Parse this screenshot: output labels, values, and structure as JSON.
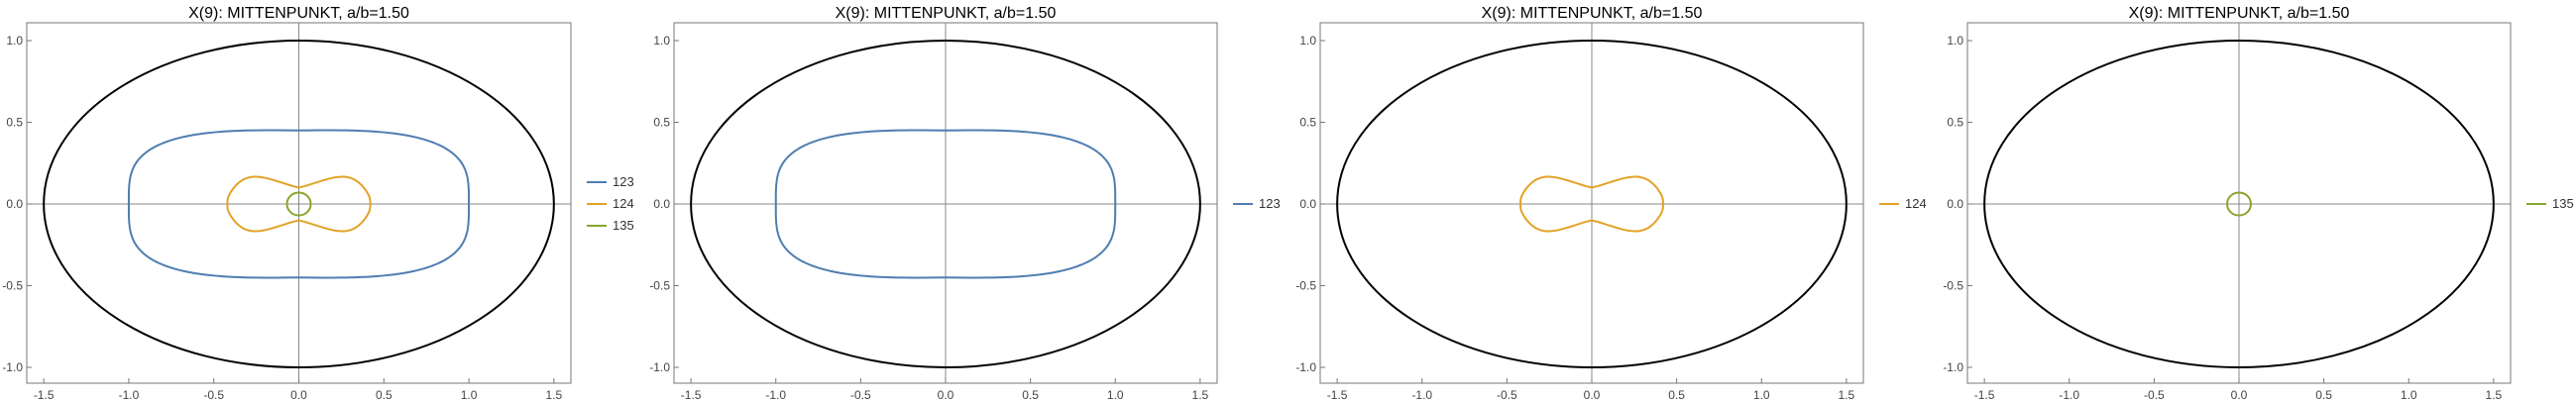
{
  "chart_data": [
    {
      "type": "line",
      "title": "X(9): MITTENPUNKT, a/b=1.50",
      "xlim": [
        -1.6,
        1.6
      ],
      "ylim": [
        -1.0,
        1.0
      ],
      "x_ticks": [
        -1.5,
        -1.0,
        -0.5,
        0.0,
        0.5,
        1.0,
        1.5
      ],
      "y_ticks": [
        -1.0,
        -0.5,
        0.0,
        0.5,
        1.0
      ],
      "x_tick_labels": [
        "-1.5",
        "-1.0",
        "-0.5",
        "0.0",
        "0.5",
        "1.0",
        "1.5"
      ],
      "y_tick_labels": [
        "-1.0",
        "-0.5",
        "0.0",
        "0.5",
        "1.0"
      ],
      "grid": false,
      "legend_position": "right",
      "ellipse": {
        "a": 1.5,
        "b": 1.0,
        "color": "#000000"
      },
      "series": [
        {
          "name": "123",
          "color": "#4f7db0",
          "shape": "peanut",
          "x_half_width": 1.0,
          "y_center_half_height": 0.45,
          "y_peak_half_height": 0.46
        },
        {
          "name": "124",
          "color": "#e3a227",
          "shape": "peanut",
          "x_half_width": 0.42,
          "y_center_half_height": 0.1,
          "y_peak_half_height": 0.2
        },
        {
          "name": "135",
          "color": "#8aa52e",
          "shape": "circle",
          "x_half_width": 0.07,
          "y_center_half_height": 0.07,
          "y_peak_half_height": 0.07
        }
      ]
    },
    {
      "type": "line",
      "title": "X(9): MITTENPUNKT, a/b=1.50",
      "xlim": [
        -1.6,
        1.6
      ],
      "ylim": [
        -1.0,
        1.0
      ],
      "x_ticks": [
        -1.5,
        -1.0,
        -0.5,
        0.0,
        0.5,
        1.0,
        1.5
      ],
      "y_ticks": [
        -1.0,
        -0.5,
        0.0,
        0.5,
        1.0
      ],
      "x_tick_labels": [
        "-1.5",
        "-1.0",
        "-0.5",
        "0.0",
        "0.5",
        "1.0",
        "1.5"
      ],
      "y_tick_labels": [
        "-1.0",
        "-0.5",
        "0.0",
        "0.5",
        "1.0"
      ],
      "grid": false,
      "legend_position": "right",
      "ellipse": {
        "a": 1.5,
        "b": 1.0,
        "color": "#000000"
      },
      "series": [
        {
          "name": "123",
          "color": "#4f7db0",
          "shape": "peanut",
          "x_half_width": 1.0,
          "y_center_half_height": 0.45,
          "y_peak_half_height": 0.46
        }
      ]
    },
    {
      "type": "line",
      "title": "X(9): MITTENPUNKT, a/b=1.50",
      "xlim": [
        -1.6,
        1.6
      ],
      "ylim": [
        -1.0,
        1.0
      ],
      "x_ticks": [
        -1.5,
        -1.0,
        -0.5,
        0.0,
        0.5,
        1.0,
        1.5
      ],
      "y_ticks": [
        -1.0,
        -0.5,
        0.0,
        0.5,
        1.0
      ],
      "x_tick_labels": [
        "-1.5",
        "-1.0",
        "-0.5",
        "0.0",
        "0.5",
        "1.0",
        "1.5"
      ],
      "y_tick_labels": [
        "-1.0",
        "-0.5",
        "0.0",
        "0.5",
        "1.0"
      ],
      "grid": false,
      "legend_position": "right",
      "ellipse": {
        "a": 1.5,
        "b": 1.0,
        "color": "#000000"
      },
      "series": [
        {
          "name": "124",
          "color": "#e3a227",
          "shape": "peanut",
          "x_half_width": 0.42,
          "y_center_half_height": 0.1,
          "y_peak_half_height": 0.2
        }
      ]
    },
    {
      "type": "line",
      "title": "X(9): MITTENPUNKT, a/b=1.50",
      "xlim": [
        -1.6,
        1.6
      ],
      "ylim": [
        -1.0,
        1.0
      ],
      "x_ticks": [
        -1.5,
        -1.0,
        -0.5,
        0.0,
        0.5,
        1.0,
        1.5
      ],
      "y_ticks": [
        -1.0,
        -0.5,
        0.0,
        0.5,
        1.0
      ],
      "x_tick_labels": [
        "-1.5",
        "-1.0",
        "-0.5",
        "0.0",
        "0.5",
        "1.0",
        "1.5"
      ],
      "y_tick_labels": [
        "-1.0",
        "-0.5",
        "0.0",
        "0.5",
        "1.0"
      ],
      "grid": false,
      "legend_position": "right",
      "ellipse": {
        "a": 1.5,
        "b": 1.0,
        "color": "#000000"
      },
      "series": [
        {
          "name": "135",
          "color": "#8aa52e",
          "shape": "circle",
          "x_half_width": 0.07,
          "y_center_half_height": 0.07,
          "y_peak_half_height": 0.07
        }
      ]
    }
  ]
}
